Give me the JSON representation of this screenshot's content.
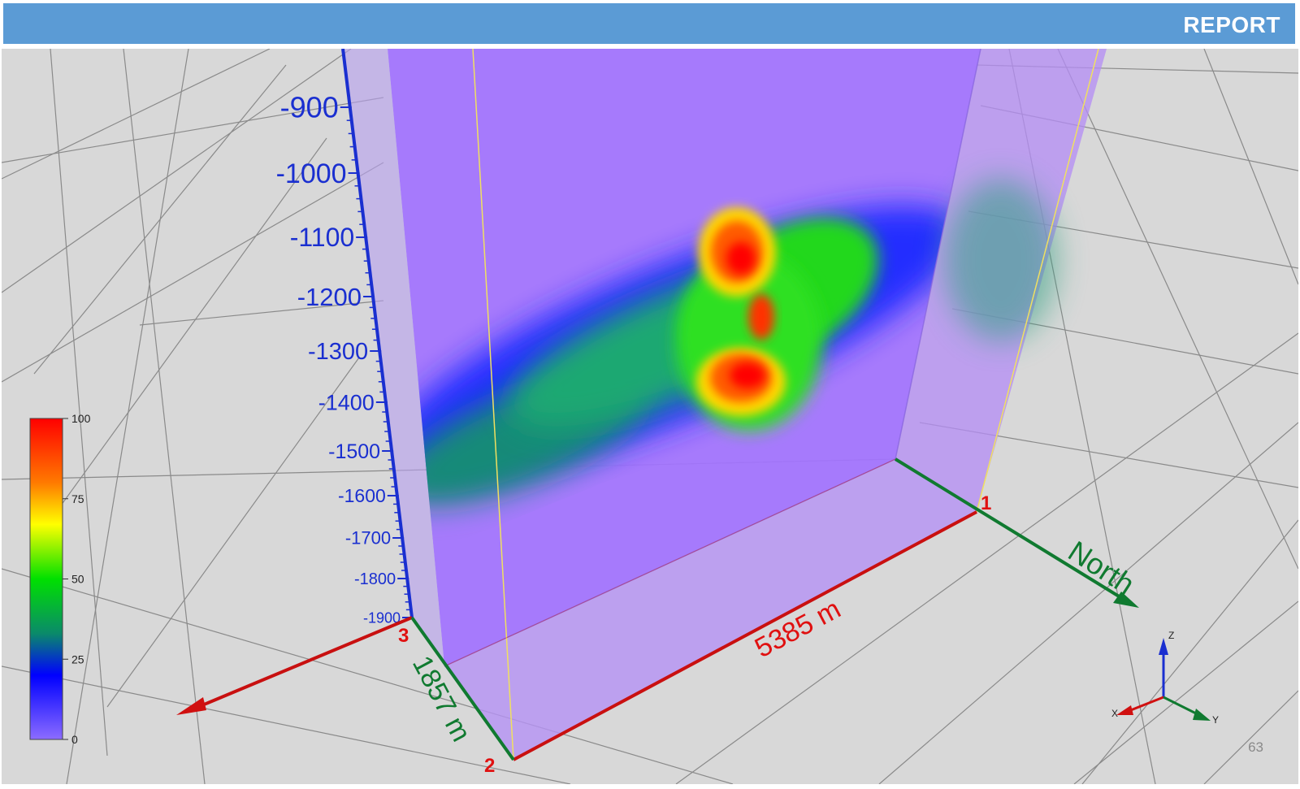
{
  "header": {
    "title": "REPORT"
  },
  "depth_axis": {
    "ticks": [
      "-900",
      "-1000",
      "-1100",
      "-1200",
      "-1300",
      "-1400",
      "-1500",
      "-1600",
      "-1700",
      "-1800",
      "-1900"
    ]
  },
  "colorbar": {
    "ticks": [
      "100",
      "75",
      "50",
      "25",
      "0"
    ],
    "colors": [
      "#ff0000",
      "#ff8c00",
      "#ffff00",
      "#00e000",
      "#0a8a6a",
      "#0000ff",
      "#8c6cff"
    ]
  },
  "corners": {
    "c1": "1",
    "c2": "2",
    "c3": "3"
  },
  "dimensions": {
    "length": "5385 m",
    "width": "1857 m"
  },
  "north_label": "North",
  "orientation_axes": {
    "z": "Z",
    "x": "X",
    "y": "Y"
  },
  "page_number": "63",
  "colors": {
    "header": "#5b9bd5",
    "volume": "#a070ff",
    "depth_axis": "#1a2fd0",
    "length_axis": "#d01010",
    "width_axis": "#107a30",
    "grid_bg": "#d8d8d8"
  }
}
